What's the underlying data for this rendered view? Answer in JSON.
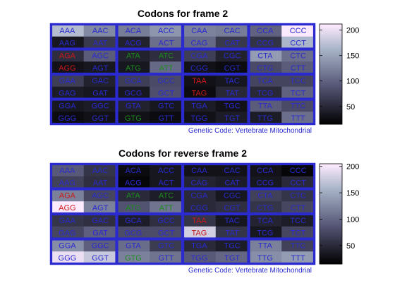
{
  "chart_data": [
    {
      "type": "heatmap",
      "title": "Codons for frame 2",
      "annotation": "Genetic Code: Vertebrate Mitochondrial",
      "rows": [
        [
          "AAA",
          "AAC",
          "ACA",
          "ACC",
          "CAA",
          "CAC",
          "CCA",
          "CCC"
        ],
        [
          "AAG",
          "AAT",
          "ACG",
          "ACT",
          "CAG",
          "CAT",
          "CCG",
          "CCT"
        ],
        [
          "AGA",
          "AGC",
          "ATA",
          "ATC",
          "CGA",
          "CGC",
          "CTA",
          "CTC"
        ],
        [
          "AGG",
          "AGT",
          "ATG",
          "ATT",
          "CGG",
          "CGT",
          "CTG",
          "CTT"
        ],
        [
          "GAA",
          "GAC",
          "GCA",
          "GCC",
          "TAA",
          "TAC",
          "TCA",
          "TCC"
        ],
        [
          "GAG",
          "GAT",
          "GCG",
          "GCT",
          "TAG",
          "TAT",
          "TCG",
          "TCT"
        ],
        [
          "GGA",
          "GGC",
          "GTA",
          "GTC",
          "TGA",
          "TGC",
          "TTA",
          "TTC"
        ],
        [
          "GGG",
          "GGT",
          "GTG",
          "GTT",
          "TGG",
          "TGT",
          "TTG",
          "TTT"
        ]
      ],
      "values": [
        [
          170,
          130,
          120,
          140,
          125,
          120,
          100,
          210
        ],
        [
          35,
          65,
          45,
          110,
          105,
          65,
          60,
          165
        ],
        [
          55,
          95,
          45,
          55,
          70,
          45,
          145,
          110
        ],
        [
          30,
          35,
          35,
          105,
          30,
          25,
          80,
          95
        ],
        [
          70,
          45,
          70,
          80,
          30,
          35,
          75,
          75
        ],
        [
          40,
          35,
          35,
          85,
          25,
          50,
          50,
          100
        ],
        [
          35,
          40,
          45,
          35,
          40,
          30,
          95,
          80
        ],
        [
          25,
          30,
          30,
          25,
          30,
          40,
          40,
          110
        ]
      ],
      "colorbar": {
        "min": 15,
        "max": 212,
        "ticks": [
          50,
          100,
          150,
          200
        ]
      }
    },
    {
      "type": "heatmap",
      "title": "Codons for reverse frame 2",
      "annotation": "Genetic Code: Vertebrate Mitochondrial",
      "rows": [
        [
          "AAA",
          "AAC",
          "ACA",
          "ACC",
          "CAA",
          "CAC",
          "CCA",
          "CCC"
        ],
        [
          "AAG",
          "AAT",
          "ACG",
          "ACT",
          "CAG",
          "CAT",
          "CCG",
          "CCT"
        ],
        [
          "AGA",
          "AGC",
          "ATA",
          "ATC",
          "CGA",
          "CGC",
          "CTA",
          "CTC"
        ],
        [
          "AGG",
          "AGT",
          "ATG",
          "ATT",
          "CGG",
          "CGT",
          "CTG",
          "CTT"
        ],
        [
          "GAA",
          "GAC",
          "GCA",
          "GCC",
          "TAA",
          "TAC",
          "TCA",
          "TCC"
        ],
        [
          "GAG",
          "GAT",
          "GCG",
          "GCT",
          "TAG",
          "TAT",
          "TCG",
          "TCT"
        ],
        [
          "GGA",
          "GGC",
          "GTA",
          "GTC",
          "TGA",
          "TGC",
          "TTA",
          "TTC"
        ],
        [
          "GGG",
          "GGT",
          "GTG",
          "GTT",
          "TGG",
          "TGT",
          "TTG",
          "TTT"
        ]
      ],
      "values": [
        [
          90,
          60,
          25,
          35,
          30,
          30,
          30,
          20
        ],
        [
          70,
          55,
          20,
          35,
          45,
          40,
          35,
          50
        ],
        [
          120,
          75,
          50,
          40,
          50,
          35,
          70,
          60
        ],
        [
          205,
          120,
          85,
          110,
          50,
          55,
          60,
          75
        ],
        [
          60,
          55,
          40,
          55,
          60,
          35,
          45,
          40
        ],
        [
          75,
          95,
          80,
          80,
          180,
          60,
          35,
          75
        ],
        [
          130,
          95,
          105,
          65,
          50,
          40,
          120,
          70
        ],
        [
          195,
          175,
          120,
          110,
          90,
          100,
          130,
          140
        ]
      ],
      "colorbar": {
        "min": 15,
        "max": 205,
        "ticks": [
          50,
          100,
          150,
          200
        ]
      }
    }
  ],
  "codon_colors": {
    "default": "#2a2ad0",
    "start": "#1e8c1e",
    "stop": "#cc1a1a"
  },
  "start_codons": [
    "ATA",
    "ATC",
    "ATG",
    "ATT",
    "GTG"
  ],
  "stop_codons": [
    "AGA",
    "AGG",
    "TAA",
    "TAG"
  ],
  "grid_color": "#2a2ad0",
  "annotation_color": "#2a2ad0"
}
